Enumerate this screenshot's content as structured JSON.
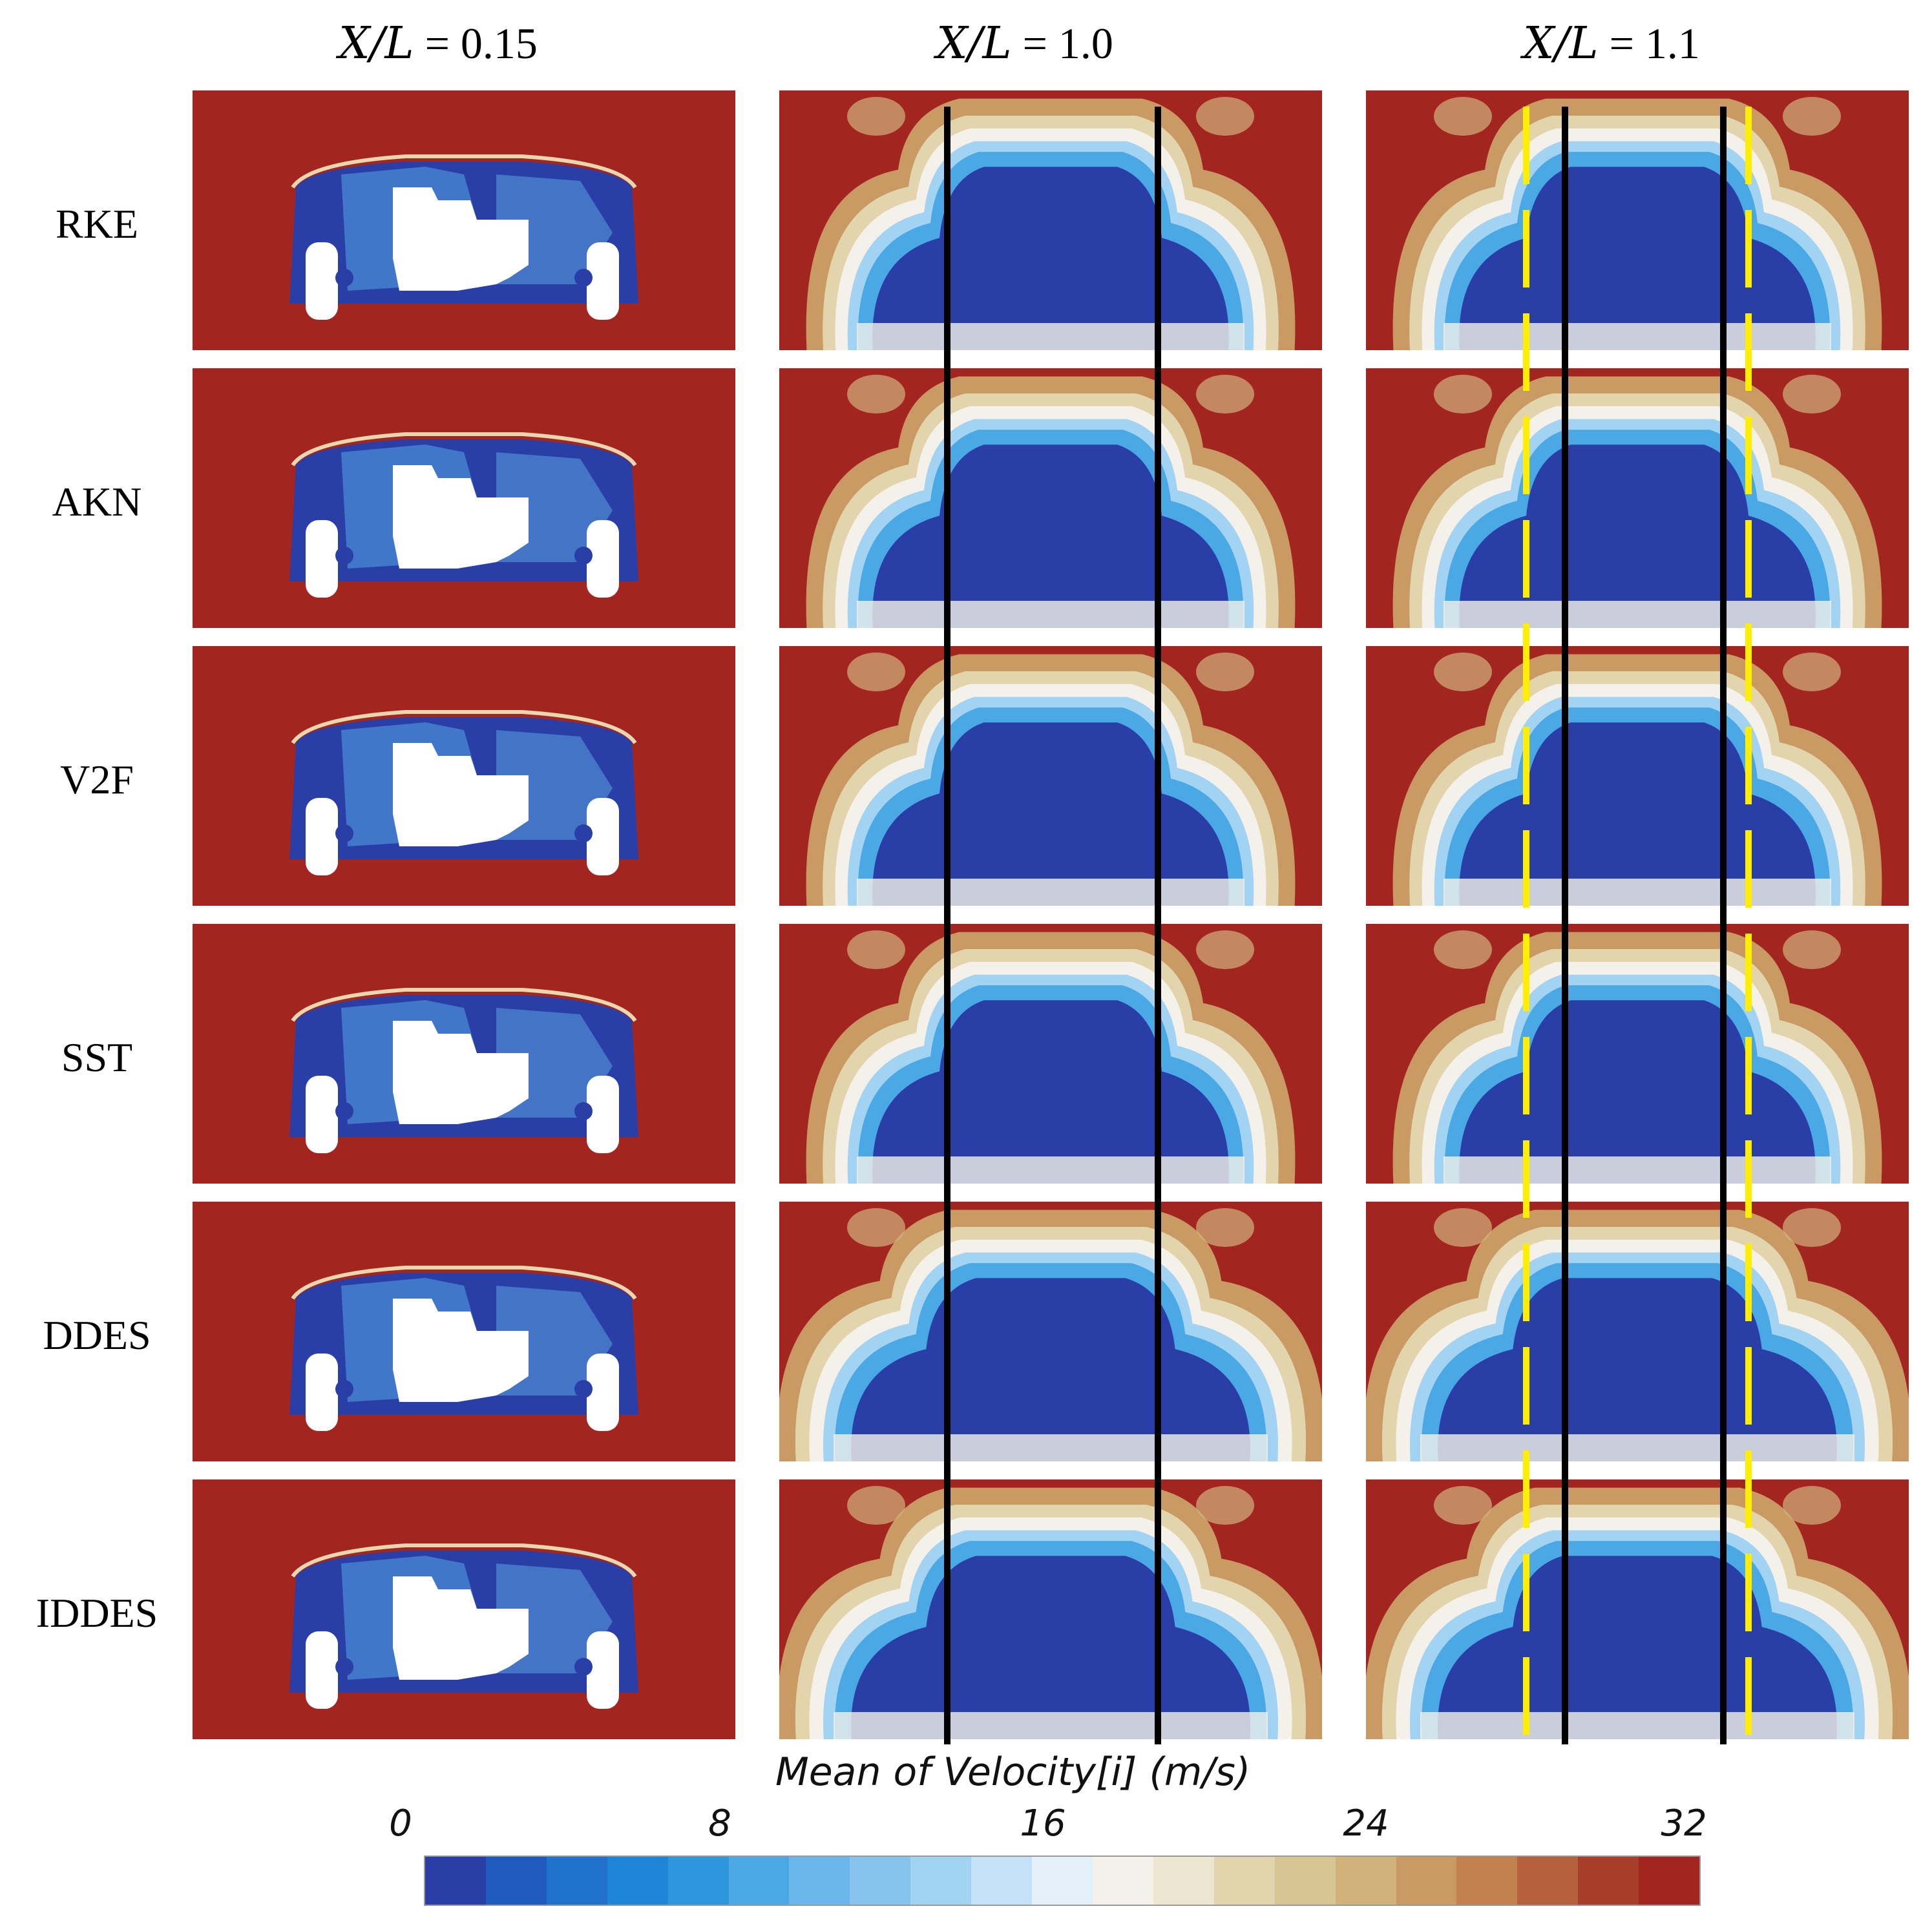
{
  "columns": [
    {
      "var": "X/L",
      "eq": " = ",
      "val": "0.15"
    },
    {
      "var": "X/L",
      "eq": " = ",
      "val": "1.0"
    },
    {
      "var": "X/L",
      "eq": " = ",
      "val": "1.1"
    }
  ],
  "rows": [
    "RKE",
    "AKN",
    "V2F",
    "SST",
    "DDES",
    "IDDES"
  ],
  "colorbar": {
    "title": "Mean of Velocity[i] (m/s)",
    "ticks": [
      "0",
      "8",
      "16",
      "24",
      "32"
    ],
    "min": 0,
    "max": 32,
    "colors": [
      "#2a3ea7",
      "#1f5bbf",
      "#1f71cc",
      "#1e86d6",
      "#2c97dd",
      "#4aa8e4",
      "#69b6ea",
      "#86c4ee",
      "#a3d3f3",
      "#c4e2f7",
      "#e3f0f8",
      "#f3f1ea",
      "#ede6d0",
      "#e2d5ad",
      "#d8c594",
      "#d0b27a",
      "#c99a63",
      "#c2814f",
      "#b6613c",
      "#a83d2b",
      "#a32520"
    ]
  },
  "palette": {
    "background": "#a32520",
    "core": "#2a3ea7",
    "white": "#ffffff",
    "guide_solid": "#000000",
    "guide_dashed": "#ffee00"
  }
}
